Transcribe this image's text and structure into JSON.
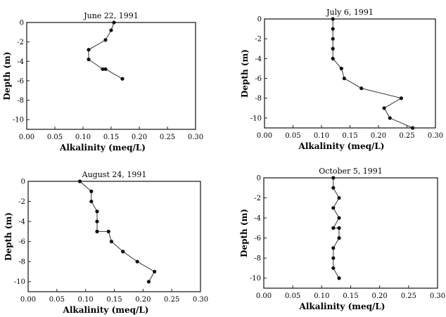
{
  "chart_data": [
    {
      "type": "line",
      "title": "June 22, 1991",
      "xlabel": "Alkalinity (meq/L)",
      "ylabel": "Depth (m)",
      "xlim": [
        0,
        0.3
      ],
      "ylim": [
        -11,
        0
      ],
      "xticks": [
        "0.00",
        "0.05",
        "0.10",
        "0.15",
        "0.20",
        "0.25",
        "0.30"
      ],
      "yticks": [
        "0",
        "-2",
        "-4",
        "-6",
        "-8",
        "-10"
      ],
      "series": [
        {
          "points": [
            [
              0.155,
              0
            ],
            [
              0.15,
              -0.8
            ],
            [
              0.14,
              -1.8
            ],
            [
              0.11,
              -2.8
            ],
            [
              0.11,
              -3.8
            ],
            [
              0.135,
              -4.8
            ],
            [
              0.14,
              -4.8
            ],
            [
              0.17,
              -5.8
            ]
          ]
        }
      ]
    },
    {
      "type": "line",
      "title": "July 6, 1991",
      "xlabel": "Alkalinity (meq/L)",
      "ylabel": "Depth (m)",
      "xlim": [
        0,
        0.3
      ],
      "ylim": [
        -11,
        0
      ],
      "xticks": [
        "0.00",
        "0.05",
        "0.10",
        "0.15",
        "0.20",
        "0.25",
        "0.30"
      ],
      "yticks": [
        "0",
        "-2",
        "-4",
        "-6",
        "-8",
        "-10"
      ],
      "series": [
        {
          "points": [
            [
              0.12,
              0
            ],
            [
              0.12,
              -1
            ],
            [
              0.12,
              -2
            ],
            [
              0.12,
              -3
            ],
            [
              0.12,
              -4
            ],
            [
              0.135,
              -5
            ],
            [
              0.14,
              -6
            ],
            [
              0.17,
              -7
            ],
            [
              0.24,
              -8
            ],
            [
              0.21,
              -9
            ],
            [
              0.22,
              -10
            ],
            [
              0.26,
              -11
            ]
          ]
        }
      ]
    },
    {
      "type": "line",
      "title": "August 24, 1991",
      "xlabel": "Alkalinity (meq/L)",
      "ylabel": "Depth (m)",
      "xlim": [
        0,
        0.3
      ],
      "ylim": [
        -11,
        0
      ],
      "xticks": [
        "0.00",
        "0.05",
        "0.10",
        "0.15",
        "0.20",
        "0.25",
        "0.30"
      ],
      "yticks": [
        "0",
        "-2",
        "-4",
        "-6",
        "-8",
        "-10"
      ],
      "series": [
        {
          "points": [
            [
              0.09,
              0
            ],
            [
              0.11,
              -1
            ],
            [
              0.11,
              -2
            ],
            [
              0.12,
              -3
            ],
            [
              0.12,
              -4
            ],
            [
              0.12,
              -5
            ],
            [
              0.14,
              -5
            ],
            [
              0.145,
              -6
            ],
            [
              0.165,
              -7
            ],
            [
              0.19,
              -8
            ],
            [
              0.22,
              -9
            ],
            [
              0.21,
              -10
            ]
          ]
        }
      ]
    },
    {
      "type": "line",
      "title": "October 5, 1991",
      "xlabel": "Alkalinity (meq/L)",
      "ylabel": "Depth (m)",
      "xlim": [
        0,
        0.3
      ],
      "ylim": [
        -11,
        0
      ],
      "xticks": [
        "0.00",
        "0.05",
        "0.10",
        "0.15",
        "0.20",
        "0.25",
        "0.30"
      ],
      "yticks": [
        "0",
        "-2",
        "-4",
        "-6",
        "-8",
        "-10"
      ],
      "series": [
        {
          "points": [
            [
              0.12,
              0
            ],
            [
              0.12,
              -1
            ],
            [
              0.13,
              -2
            ],
            [
              0.12,
              -3
            ],
            [
              0.13,
              -4
            ],
            [
              0.12,
              -5
            ],
            [
              0.13,
              -5
            ],
            [
              0.13,
              -6
            ],
            [
              0.12,
              -7
            ],
            [
              0.12,
              -8
            ],
            [
              0.12,
              -9
            ],
            [
              0.13,
              -10
            ]
          ]
        }
      ]
    }
  ]
}
